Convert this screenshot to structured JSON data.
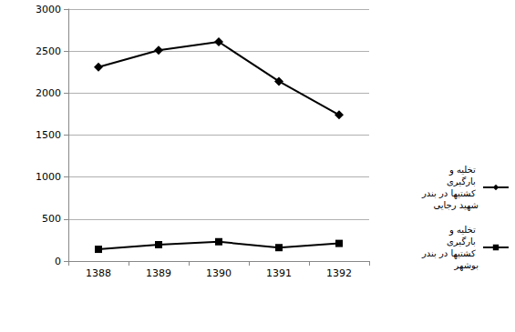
{
  "chart_data": {
    "type": "line",
    "categories": [
      "1388",
      "1389",
      "1390",
      "1391",
      "1392"
    ],
    "series": [
      {
        "name": "تخلیه و بارگیری کشتیها در بندر شهید رجایی",
        "color": "#000000",
        "marker": "diamond",
        "line_style": "solid",
        "values": [
          2310,
          2510,
          2610,
          2140,
          1740
        ]
      },
      {
        "name": "تخلیه و بارگیری کشتیها در بندر بوشهر",
        "color": "#000000",
        "marker": "square",
        "line_style": "solid",
        "values": [
          140,
          195,
          230,
          160,
          210
        ]
      }
    ],
    "ylim": [
      0,
      3000
    ],
    "yticks": [
      0,
      500,
      1000,
      1500,
      2000,
      2500,
      3000
    ],
    "grid": true,
    "legend": "right"
  }
}
